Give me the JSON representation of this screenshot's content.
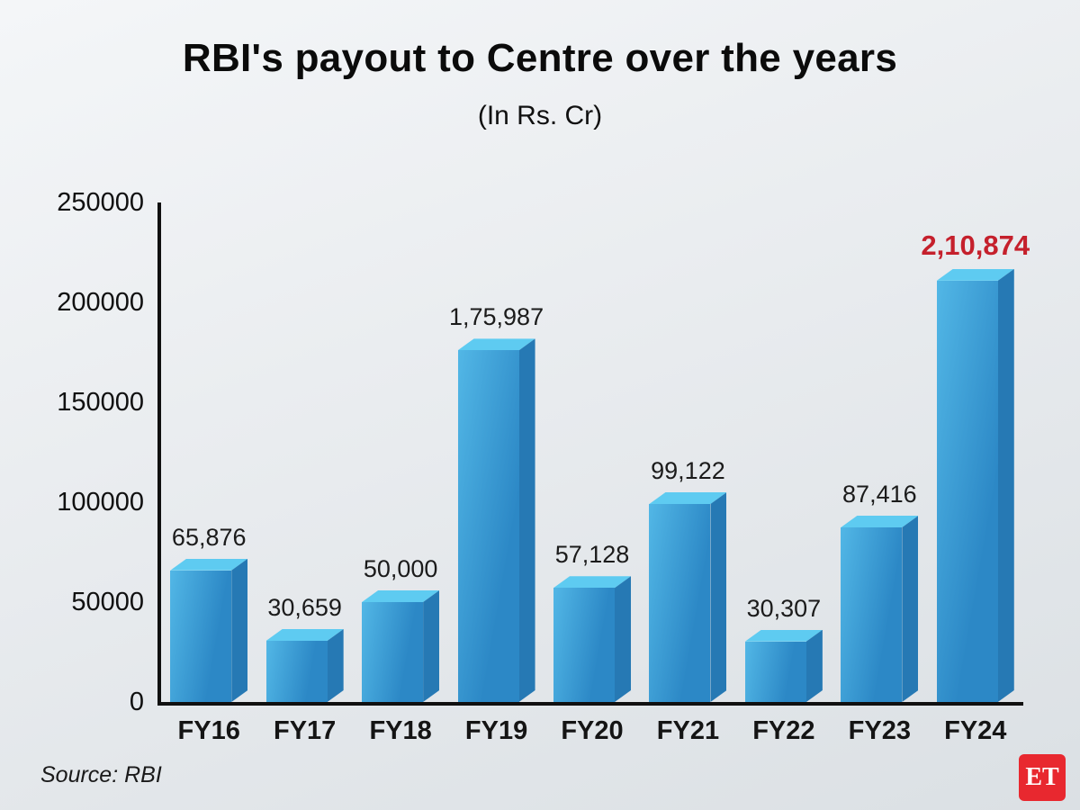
{
  "header": {
    "title": "RBI's payout to Centre over the years",
    "subtitle": "(In Rs. Cr)"
  },
  "footer": {
    "source": "Source: RBI",
    "logo_text": "ET",
    "logo_color": "#e8282f"
  },
  "chart_data": {
    "type": "bar",
    "title": "RBI's payout to Centre over the years",
    "subtitle": "(In Rs. Cr)",
    "categories": [
      "FY16",
      "FY17",
      "FY18",
      "FY19",
      "FY20",
      "FY21",
      "FY22",
      "FY23",
      "FY24"
    ],
    "values": [
      65876,
      30659,
      50000,
      175987,
      57128,
      99122,
      30307,
      87416,
      210874
    ],
    "value_labels": [
      "65,876",
      "30,659",
      "50,000",
      "1,75,987",
      "57,128",
      "99,122",
      "30,307",
      "87,416",
      "2,10,874"
    ],
    "highlight_index": 8,
    "xlabel": "",
    "ylabel": "",
    "ylim": [
      0,
      250000
    ],
    "yticks": [
      0,
      50000,
      100000,
      150000,
      200000,
      250000
    ],
    "ytick_labels": [
      "0",
      "50000",
      "100000",
      "150000",
      "200000",
      "250000"
    ],
    "grid": false,
    "legend": false,
    "colors": {
      "bar_front_light": "#52b7e6",
      "bar_front": "#2c88c6",
      "bar_top": "#5ecbf1",
      "bar_side": "#2679b4",
      "label": "#1b1b1b",
      "highlight_label": "#c5202c",
      "axis": "#101010"
    }
  }
}
